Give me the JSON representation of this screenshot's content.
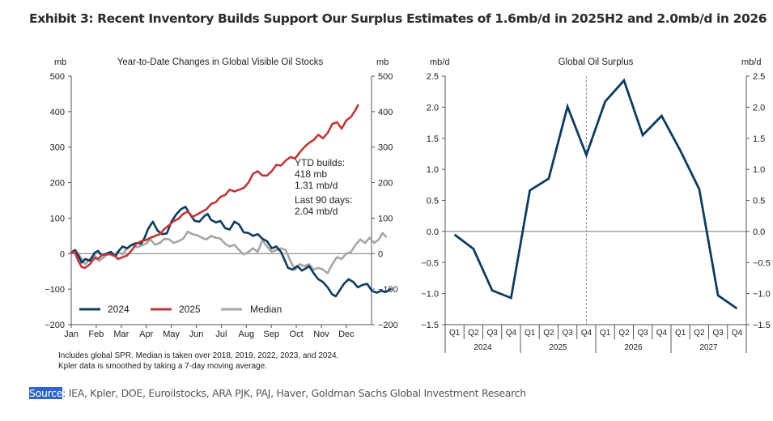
{
  "exhibit_title": "Exhibit 3: Recent Inventory Builds Support Our Surplus Estimates of 1.6mb/d in 2025H2 and 2.0mb/d in 2026",
  "footnote_lines": [
    "Includes global SPR. Median is taken over 2018, 2019, 2022, 2023, and 2024.",
    "Kpler data is smoothed by taking a 7-day moving average."
  ],
  "source": {
    "key": "Source",
    "text": ": IEA, Kpler, DOE, Euroilstocks, ARA PJK, PAJ, Haver, Goldman Sachs Global Investment Research"
  },
  "colors": {
    "series_2024": "#0e3b5e",
    "series_2025": "#c0373a",
    "series_median": "#a6a6a6",
    "surplus_line": "#0e3b5e",
    "axis": "#555555"
  },
  "chart_data": [
    {
      "type": "line",
      "title": "Year-to-Date Changes in Global Visible Oil Stocks",
      "ylabel_left": "mb",
      "ylabel_right": "mb",
      "ylim": [
        -200,
        500
      ],
      "yticks": [
        -200,
        -100,
        0,
        100,
        200,
        300,
        400,
        500
      ],
      "ytick_labels": [
        "−200",
        "−100",
        "0",
        "100",
        "200",
        "300",
        "400",
        "500"
      ],
      "x_categories": [
        "Jan",
        "Feb",
        "Mar",
        "Apr",
        "May",
        "Jun",
        "Jul",
        "Aug",
        "Sep",
        "Oct",
        "Nov",
        "Dec"
      ],
      "x_unit": "month index (0 = start of Jan, 12 = end of Dec)",
      "legend": {
        "placement": "bottom-left",
        "entries": [
          "2024",
          "2025",
          "Median"
        ]
      },
      "annotations": [
        [
          "YTD builds:",
          "418 mb",
          "1.31 mb/d"
        ],
        [
          "Last 90 days:",
          "2.04 mb/d"
        ]
      ],
      "series": [
        {
          "name": "2024",
          "points": [
            [
              0,
              2
            ],
            [
              0.15,
              10
            ],
            [
              0.3,
              -5
            ],
            [
              0.45,
              -25
            ],
            [
              0.6,
              -15
            ],
            [
              0.8,
              -20
            ],
            [
              1.0,
              2
            ],
            [
              1.15,
              8
            ],
            [
              1.3,
              -5
            ],
            [
              1.5,
              0
            ],
            [
              1.7,
              5
            ],
            [
              1.9,
              -8
            ],
            [
              2.0,
              5
            ],
            [
              2.2,
              20
            ],
            [
              2.4,
              15
            ],
            [
              2.6,
              25
            ],
            [
              2.8,
              30
            ],
            [
              3.0,
              28
            ],
            [
              3.15,
              45
            ],
            [
              3.3,
              70
            ],
            [
              3.5,
              90
            ],
            [
              3.7,
              65
            ],
            [
              3.9,
              55
            ],
            [
              4.1,
              57
            ],
            [
              4.3,
              90
            ],
            [
              4.5,
              110
            ],
            [
              4.7,
              125
            ],
            [
              4.9,
              132
            ],
            [
              5.1,
              110
            ],
            [
              5.3,
              92
            ],
            [
              5.5,
              90
            ],
            [
              5.7,
              105
            ],
            [
              5.85,
              112
            ],
            [
              6.0,
              95
            ],
            [
              6.2,
              88
            ],
            [
              6.4,
              92
            ],
            [
              6.6,
              72
            ],
            [
              6.8,
              68
            ],
            [
              7.0,
              90
            ],
            [
              7.2,
              82
            ],
            [
              7.4,
              60
            ],
            [
              7.6,
              58
            ],
            [
              7.8,
              50
            ],
            [
              8.0,
              55
            ],
            [
              8.2,
              42
            ],
            [
              8.4,
              35
            ],
            [
              8.6,
              15
            ],
            [
              8.8,
              20
            ],
            [
              9.0,
              5
            ],
            [
              9.1,
              -10
            ],
            [
              9.3,
              -40
            ],
            [
              9.5,
              -45
            ],
            [
              9.7,
              -35
            ],
            [
              9.9,
              -48
            ],
            [
              10.1,
              -40
            ],
            [
              10.2,
              -35
            ],
            [
              10.4,
              -55
            ],
            [
              10.6,
              -72
            ],
            [
              10.8,
              -80
            ],
            [
              11.0,
              -95
            ],
            [
              11.2,
              -115
            ],
            [
              11.35,
              -120
            ],
            [
              11.5,
              -105
            ],
            [
              11.7,
              -85
            ],
            [
              11.9,
              -72
            ],
            [
              12.1,
              -80
            ],
            [
              12.3,
              -95
            ],
            [
              12.5,
              -88
            ],
            [
              12.7,
              -85
            ],
            [
              12.9,
              -105
            ],
            [
              13.1,
              -110
            ],
            [
              13.3,
              -105
            ],
            [
              13.5,
              -108
            ],
            [
              13.7,
              -100
            ]
          ]
        },
        {
          "name": "2025",
          "points": [
            [
              0,
              2
            ],
            [
              0.15,
              5
            ],
            [
              0.3,
              -20
            ],
            [
              0.45,
              -38
            ],
            [
              0.6,
              -40
            ],
            [
              0.8,
              -30
            ],
            [
              1.0,
              -12
            ],
            [
              1.15,
              -15
            ],
            [
              1.3,
              -5
            ],
            [
              1.5,
              -2
            ],
            [
              1.7,
              -2
            ],
            [
              1.9,
              -8
            ],
            [
              2.0,
              -15
            ],
            [
              2.2,
              -10
            ],
            [
              2.4,
              -5
            ],
            [
              2.6,
              10
            ],
            [
              2.8,
              28
            ],
            [
              3.0,
              35
            ],
            [
              3.2,
              38
            ],
            [
              3.4,
              45
            ],
            [
              3.6,
              50
            ],
            [
              3.8,
              55
            ],
            [
              4.0,
              70
            ],
            [
              4.2,
              80
            ],
            [
              4.4,
              92
            ],
            [
              4.6,
              98
            ],
            [
              4.8,
              112
            ],
            [
              5.0,
              118
            ],
            [
              5.2,
              104
            ],
            [
              5.4,
              110
            ],
            [
              5.6,
              118
            ],
            [
              5.8,
              125
            ],
            [
              6.0,
              140
            ],
            [
              6.2,
              145
            ],
            [
              6.4,
              160
            ],
            [
              6.6,
              165
            ],
            [
              6.8,
              180
            ],
            [
              7.0,
              175
            ],
            [
              7.2,
              180
            ],
            [
              7.4,
              185
            ],
            [
              7.6,
              200
            ],
            [
              7.8,
              225
            ],
            [
              8.0,
              232
            ],
            [
              8.2,
              220
            ],
            [
              8.4,
              220
            ],
            [
              8.6,
              232
            ],
            [
              8.8,
              250
            ],
            [
              9.0,
              248
            ],
            [
              9.2,
              262
            ],
            [
              9.4,
              272
            ],
            [
              9.6,
              268
            ],
            [
              9.8,
              285
            ],
            [
              10.0,
              300
            ],
            [
              10.2,
              312
            ],
            [
              10.4,
              320
            ],
            [
              10.6,
              335
            ],
            [
              10.8,
              325
            ],
            [
              11.0,
              340
            ],
            [
              11.2,
              365
            ],
            [
              11.4,
              370
            ],
            [
              11.6,
              352
            ],
            [
              11.8,
              375
            ],
            [
              12.0,
              385
            ],
            [
              12.2,
              405
            ],
            [
              12.3,
              418
            ]
          ]
        },
        {
          "name": "Median",
          "points": [
            [
              0,
              5
            ],
            [
              0.2,
              10
            ],
            [
              0.4,
              -10
            ],
            [
              0.6,
              -30
            ],
            [
              0.8,
              -15
            ],
            [
              1.0,
              -5
            ],
            [
              1.2,
              -20
            ],
            [
              1.4,
              -10
            ],
            [
              1.6,
              0
            ],
            [
              1.8,
              -5
            ],
            [
              2.0,
              5
            ],
            [
              2.2,
              -2
            ],
            [
              2.4,
              15
            ],
            [
              2.6,
              25
            ],
            [
              2.8,
              18
            ],
            [
              3.0,
              22
            ],
            [
              3.2,
              28
            ],
            [
              3.4,
              40
            ],
            [
              3.6,
              25
            ],
            [
              3.8,
              30
            ],
            [
              4.0,
              42
            ],
            [
              4.2,
              40
            ],
            [
              4.4,
              30
            ],
            [
              4.6,
              35
            ],
            [
              4.8,
              42
            ],
            [
              5.0,
              62
            ],
            [
              5.2,
              55
            ],
            [
              5.4,
              52
            ],
            [
              5.6,
              45
            ],
            [
              5.8,
              40
            ],
            [
              6.0,
              50
            ],
            [
              6.2,
              45
            ],
            [
              6.4,
              42
            ],
            [
              6.6,
              28
            ],
            [
              6.8,
              20
            ],
            [
              7.0,
              25
            ],
            [
              7.2,
              10
            ],
            [
              7.4,
              -2
            ],
            [
              7.6,
              5
            ],
            [
              7.8,
              15
            ],
            [
              8.0,
              5
            ],
            [
              8.2,
              38
            ],
            [
              8.4,
              20
            ],
            [
              8.6,
              5
            ],
            [
              8.8,
              10
            ],
            [
              9.0,
              15
            ],
            [
              9.2,
              10
            ],
            [
              9.4,
              -20
            ],
            [
              9.6,
              -45
            ],
            [
              9.8,
              -30
            ],
            [
              10.0,
              -35
            ],
            [
              10.2,
              -30
            ],
            [
              10.4,
              -45
            ],
            [
              10.6,
              -40
            ],
            [
              10.8,
              -45
            ],
            [
              11.0,
              -55
            ],
            [
              11.2,
              -30
            ],
            [
              11.4,
              -10
            ],
            [
              11.6,
              -15
            ],
            [
              11.8,
              0
            ],
            [
              12.0,
              5
            ],
            [
              12.2,
              25
            ],
            [
              12.4,
              40
            ],
            [
              12.6,
              30
            ],
            [
              12.8,
              45
            ],
            [
              13.0,
              30
            ],
            [
              13.2,
              40
            ],
            [
              13.35,
              58
            ],
            [
              13.5,
              48
            ]
          ]
        }
      ]
    },
    {
      "type": "line",
      "title": "Global Oil Surplus",
      "ylabel_left": "mb/d",
      "ylabel_right": "mb/d",
      "ylim": [
        -1.5,
        2.5
      ],
      "yticks": [
        -1.5,
        -1.0,
        -0.5,
        0.0,
        0.5,
        1.0,
        1.5,
        2.0,
        2.5
      ],
      "ytick_labels": [
        "−1.5",
        "−1.0",
        "−0.5",
        "0.0",
        "0.5",
        "1.0",
        "1.5",
        "2.0",
        "2.5"
      ],
      "quarters": [
        "Q1",
        "Q2",
        "Q3",
        "Q4",
        "Q1",
        "Q2",
        "Q3",
        "Q4",
        "Q1",
        "Q2",
        "Q3",
        "Q4",
        "Q1",
        "Q2",
        "Q3",
        "Q4"
      ],
      "years": [
        "2024",
        "2025",
        "2026",
        "2027"
      ],
      "forecast_divider_after": "2025 Q3",
      "series": [
        {
          "name": "Global Oil Surplus",
          "values": [
            -0.05,
            -0.28,
            -0.95,
            -1.07,
            0.66,
            0.85,
            2.01,
            1.23,
            2.09,
            2.43,
            1.55,
            1.86,
            1.3,
            0.68,
            -1.03,
            -1.24
          ]
        }
      ]
    }
  ]
}
